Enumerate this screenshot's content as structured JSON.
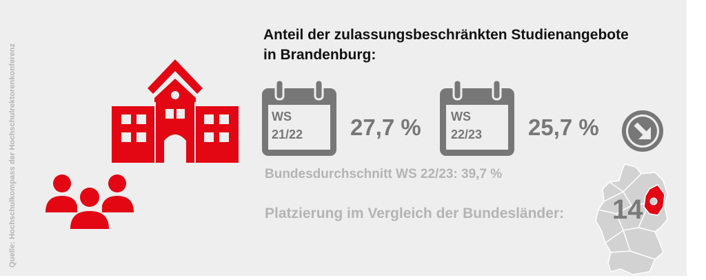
{
  "source": "Quelle: Hochschulkompass der Hochschulrektorenkonferenz",
  "title_line1": "Anteil der zulassungsbeschränkten Studienangebote",
  "title_line2": "in Brandenburg:",
  "semester1": {
    "line1": "WS",
    "line2": "21/22",
    "value": "27,7 %"
  },
  "semester2": {
    "line1": "WS",
    "line2": "22/23",
    "value": "25,7 %"
  },
  "trend_icon": "arrow-down-right-icon",
  "national_average": "Bundesdurchschnitt WS 22/23: 39,7 %",
  "ranking_label": "Platzierung im Vergleich der Bundesländer:",
  "ranking_value": "14",
  "colors": {
    "accent": "#e30613",
    "grey": "#777777",
    "light_grey": "#b4b4b4",
    "background": "#eeeeee"
  }
}
